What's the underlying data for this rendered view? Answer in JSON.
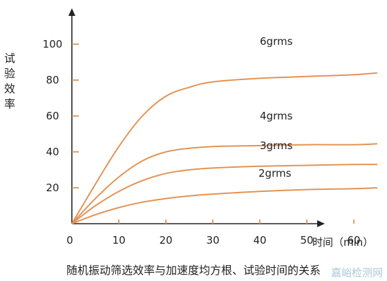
{
  "chart_data": {
    "type": "line",
    "title": "",
    "caption": "随机振动筛选效率与加速度均方根、试验时间的关系",
    "ylabel": "试验效率",
    "xlabel": "时间（min）",
    "x_ticks": [
      0,
      10,
      20,
      30,
      40,
      50,
      60
    ],
    "y_ticks": [
      20,
      40,
      60,
      80,
      100
    ],
    "xlim": [
      0,
      68
    ],
    "ylim": [
      0,
      108
    ],
    "grid": false,
    "line_color": "#e39254",
    "series": [
      {
        "name": "6grms",
        "x": [
          0,
          5,
          10,
          15,
          20,
          25,
          30,
          40,
          50,
          60,
          65
        ],
        "y": [
          0,
          22,
          43,
          60,
          71,
          76,
          79,
          81,
          82,
          83,
          84
        ]
      },
      {
        "name": "4grms",
        "x": [
          0,
          5,
          10,
          15,
          20,
          25,
          30,
          40,
          50,
          60,
          65
        ],
        "y": [
          0,
          14,
          26,
          35,
          40,
          42,
          43,
          43.5,
          44,
          44,
          44.5
        ]
      },
      {
        "name": "3grms",
        "x": [
          0,
          5,
          10,
          15,
          20,
          25,
          30,
          40,
          50,
          60,
          65
        ],
        "y": [
          0,
          10,
          18,
          24,
          28,
          30,
          31,
          32,
          32.5,
          33,
          33
        ]
      },
      {
        "name": "2grms",
        "x": [
          0,
          5,
          10,
          15,
          20,
          25,
          30,
          40,
          50,
          60,
          65
        ],
        "y": [
          0,
          5,
          9,
          12,
          14,
          15.5,
          16.5,
          18,
          19,
          19.5,
          20
        ]
      }
    ]
  },
  "watermark": "嘉峪检测网"
}
